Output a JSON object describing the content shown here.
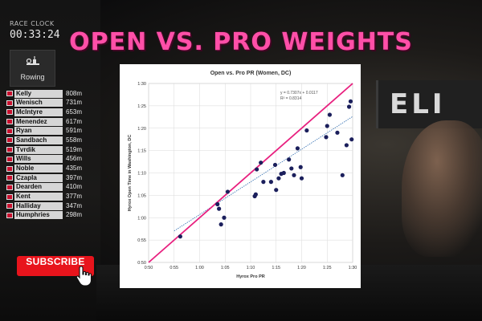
{
  "headline": "OPEN VS. PRO WEIGHTS",
  "race_clock": {
    "label": "RACE CLOCK",
    "time": "00:33:24"
  },
  "station": {
    "label": "Rowing",
    "icon": "rowing-machine-icon"
  },
  "leaderboard": [
    {
      "name": "Kelly",
      "distance": "808m"
    },
    {
      "name": "Wenisch",
      "distance": "731m"
    },
    {
      "name": "McIntyre",
      "distance": "653m"
    },
    {
      "name": "Menendez",
      "distance": "617m"
    },
    {
      "name": "Ryan",
      "distance": "591m"
    },
    {
      "name": "Sandbach",
      "distance": "558m"
    },
    {
      "name": "Tvrdik",
      "distance": "519m"
    },
    {
      "name": "Wills",
      "distance": "456m"
    },
    {
      "name": "Noble",
      "distance": "435m"
    },
    {
      "name": "Czapla",
      "distance": "397m"
    },
    {
      "name": "Dearden",
      "distance": "410m"
    },
    {
      "name": "Kent",
      "distance": "377m"
    },
    {
      "name": "Halliday",
      "distance": "347m"
    },
    {
      "name": "Humphries",
      "distance": "298m"
    }
  ],
  "subscribe": {
    "label": "SUBSCRIBE",
    "color": "#e8141c",
    "cursor_icon": "hand-pointer-icon"
  },
  "background": {
    "sign_text": "ELI"
  },
  "chart_data": {
    "type": "scatter",
    "title": "Open vs. Pro PR (Women, DC)",
    "xlabel": "Hyrox Pro PR",
    "ylabel": "Hyrox Open Time in Washington, DC",
    "xlim": [
      50,
      90
    ],
    "ylim": [
      50,
      90
    ],
    "ticks": [
      50,
      55,
      60,
      65,
      70,
      75,
      80,
      85,
      90
    ],
    "tick_labels": [
      "0:50",
      "0:55",
      "1:00",
      "1:05",
      "1:10",
      "1:15",
      "1:20",
      "1:25",
      "1:30"
    ],
    "grid": true,
    "points": [
      [
        56.2,
        55.8
      ],
      [
        63.5,
        63.0
      ],
      [
        63.8,
        62.0
      ],
      [
        64.2,
        58.5
      ],
      [
        64.8,
        60.0
      ],
      [
        65.5,
        65.8
      ],
      [
        70.8,
        64.8
      ],
      [
        71.0,
        65.2
      ],
      [
        71.2,
        70.8
      ],
      [
        72.0,
        72.3
      ],
      [
        72.5,
        68.0
      ],
      [
        74.0,
        68.0
      ],
      [
        74.8,
        71.8
      ],
      [
        75.0,
        66.2
      ],
      [
        75.5,
        68.8
      ],
      [
        76.0,
        69.8
      ],
      [
        76.5,
        70.0
      ],
      [
        77.5,
        73.0
      ],
      [
        78.0,
        71.0
      ],
      [
        78.5,
        69.5
      ],
      [
        79.2,
        75.5
      ],
      [
        79.8,
        71.3
      ],
      [
        80.0,
        68.8
      ],
      [
        81.0,
        79.5
      ],
      [
        84.8,
        78.0
      ],
      [
        85.0,
        80.5
      ],
      [
        85.5,
        83.0
      ],
      [
        87.0,
        79.0
      ],
      [
        88.0,
        69.5
      ],
      [
        88.8,
        76.2
      ],
      [
        89.3,
        84.8
      ],
      [
        89.6,
        86.0
      ],
      [
        89.8,
        77.5
      ]
    ],
    "identity_line": {
      "from": [
        50,
        50
      ],
      "to": [
        90,
        90
      ],
      "color": "#e8207f"
    },
    "trendline": {
      "equation": "y = 0.7307x + 0.0117",
      "r_squared": "R² = 0.8314",
      "slope": 0.7307,
      "intercept_days": 0.0117,
      "color": "#2f6db0"
    },
    "point_color": "#1b1f5c"
  }
}
